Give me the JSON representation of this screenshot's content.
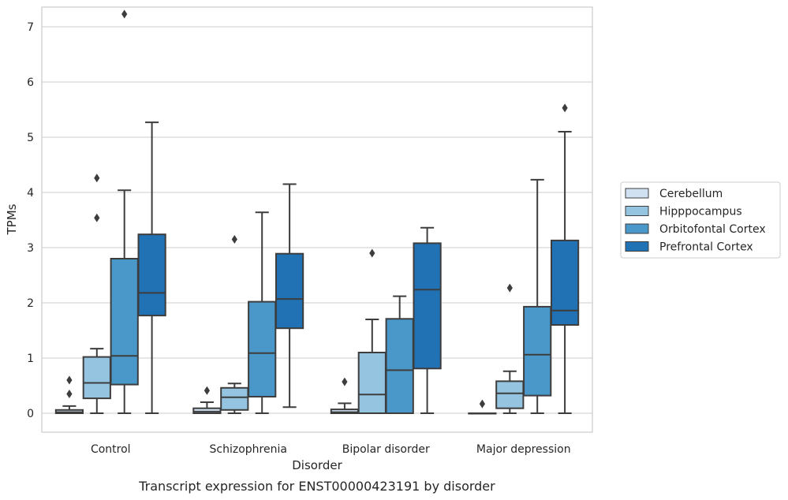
{
  "chart_data": {
    "type": "box",
    "caption": "Transcript expression for ENST00000423191 by disorder",
    "xlabel": "Disorder",
    "ylabel": "TPMs",
    "ylim": [
      -0.35,
      7.6
    ],
    "yticks": [
      0,
      1,
      2,
      3,
      4,
      5,
      6,
      7
    ],
    "grid": "horizontal",
    "legend_position": "center-right",
    "categories": [
      "Control",
      "Schizophrenia",
      "Bipolar disorder",
      "Major depression"
    ],
    "series": [
      {
        "name": "Cerebellum",
        "color": "#d0e1f2",
        "boxes": [
          {
            "whisker_low": 0,
            "q1": 0,
            "median": 0.02,
            "q3": 0.06,
            "whisker_high": 0.13,
            "outliers": [
              0.35,
              0.6
            ]
          },
          {
            "whisker_low": 0,
            "q1": 0,
            "median": 0.03,
            "q3": 0.09,
            "whisker_high": 0.2,
            "outliers": [
              0.41
            ]
          },
          {
            "whisker_low": 0,
            "q1": 0,
            "median": 0.02,
            "q3": 0.07,
            "whisker_high": 0.18,
            "outliers": [
              0.57
            ]
          },
          {
            "whisker_low": 0,
            "q1": 0,
            "median": 0,
            "q3": 0,
            "whisker_high": 0,
            "outliers": [
              0.17
            ]
          }
        ]
      },
      {
        "name": "Hipppocampus",
        "color": "#94c4df",
        "boxes": [
          {
            "whisker_low": 0,
            "q1": 0.27,
            "median": 0.55,
            "q3": 1.02,
            "whisker_high": 1.17,
            "outliers": [
              3.54,
              4.26
            ]
          },
          {
            "whisker_low": 0,
            "q1": 0.06,
            "median": 0.29,
            "q3": 0.46,
            "whisker_high": 0.54,
            "outliers": [
              3.15
            ]
          },
          {
            "whisker_low": 0,
            "q1": 0,
            "median": 0.34,
            "q3": 1.1,
            "whisker_high": 1.7,
            "outliers": [
              2.9
            ]
          },
          {
            "whisker_low": 0,
            "q1": 0.09,
            "median": 0.36,
            "q3": 0.58,
            "whisker_high": 0.76,
            "outliers": [
              2.27
            ]
          }
        ]
      },
      {
        "name": "Orbitofontal Cortex",
        "color": "#4a98c9",
        "boxes": [
          {
            "whisker_low": 0,
            "q1": 0.52,
            "median": 1.04,
            "q3": 2.8,
            "whisker_high": 4.04,
            "outliers": [
              7.23
            ]
          },
          {
            "whisker_low": 0,
            "q1": 0.3,
            "median": 1.09,
            "q3": 2.02,
            "whisker_high": 3.64,
            "outliers": []
          },
          {
            "whisker_low": 0,
            "q1": 0,
            "median": 0.78,
            "q3": 1.71,
            "whisker_high": 2.12,
            "outliers": []
          },
          {
            "whisker_low": 0,
            "q1": 0.32,
            "median": 1.06,
            "q3": 1.93,
            "whisker_high": 4.23,
            "outliers": []
          }
        ]
      },
      {
        "name": "Prefrontal Cortex",
        "color": "#2171b5",
        "boxes": [
          {
            "whisker_low": 0,
            "q1": 1.77,
            "median": 2.18,
            "q3": 3.24,
            "whisker_high": 5.27,
            "outliers": []
          },
          {
            "whisker_low": 0.11,
            "q1": 1.54,
            "median": 2.07,
            "q3": 2.89,
            "whisker_high": 4.15,
            "outliers": []
          },
          {
            "whisker_low": 0,
            "q1": 0.81,
            "median": 2.24,
            "q3": 3.08,
            "whisker_high": 3.36,
            "outliers": []
          },
          {
            "whisker_low": 0,
            "q1": 1.6,
            "median": 1.86,
            "q3": 3.13,
            "whisker_high": 5.1,
            "outliers": [
              5.53
            ]
          }
        ]
      }
    ]
  }
}
